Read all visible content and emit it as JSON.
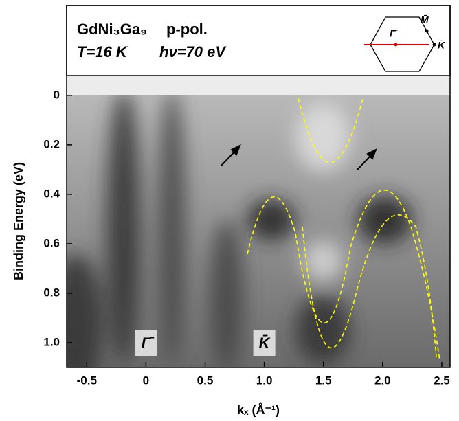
{
  "header": {
    "material": "GdNi₃Ga₉",
    "polarization": "p-pol.",
    "temperature": "T=16 K",
    "photon_energy": "hν=70 eV"
  },
  "inset": {
    "gamma": "Γ̄",
    "m": "M̄",
    "k": "K̄"
  },
  "chart_data": {
    "type": "heatmap",
    "xlabel": "kₓ (Å⁻¹)",
    "ylabel": "Binding Energy (eV)",
    "xlim": [
      -0.67,
      2.57
    ],
    "xticks": [
      -0.5,
      0,
      0.5,
      {
        "value": 1,
        "label": "1.0"
      },
      1.5,
      {
        "value": 2,
        "label": "2.0"
      },
      2.5
    ],
    "ylim": [
      -0.08,
      1.1
    ],
    "y_inverted": true,
    "yticks": [
      0,
      0.2,
      0.4,
      0.6,
      0.8,
      {
        "value": 1,
        "label": "1.0"
      }
    ],
    "point_labels": [
      {
        "label": "Γ̄",
        "x": 0
      },
      {
        "label": "K̄",
        "x": 1
      }
    ]
  }
}
